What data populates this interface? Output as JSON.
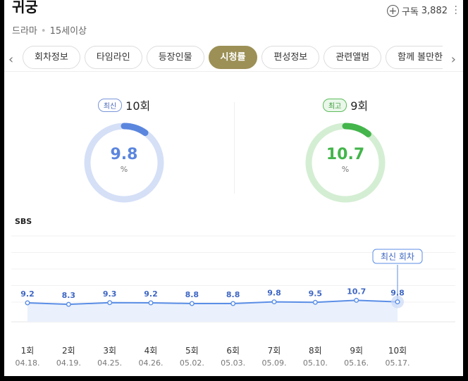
{
  "header": {
    "title": "귀궁",
    "genre": "드라마",
    "rating": "15세이상",
    "subscribe_label": "구독",
    "subscribe_count": "3,882"
  },
  "tabs": [
    {
      "label": "회차정보"
    },
    {
      "label": "타임라인"
    },
    {
      "label": "등장인물"
    },
    {
      "label": "시청률"
    },
    {
      "label": "편성정보"
    },
    {
      "label": "관련앨범"
    },
    {
      "label": "함께 볼만한"
    }
  ],
  "active_tab": "시청률",
  "latest": {
    "badge": "최신",
    "episode": "10회",
    "value": "9.8",
    "unit": "%",
    "color": "#5b86de",
    "track": "#d5e0f7"
  },
  "best": {
    "badge": "최고",
    "episode": "9회",
    "value": "10.7",
    "unit": "%",
    "color": "#43b54b",
    "track": "#d4eed3"
  },
  "channel": "SBS",
  "chart_data": {
    "type": "line",
    "categories": [
      "1회",
      "2회",
      "3회",
      "4회",
      "5회",
      "6회",
      "7회",
      "8회",
      "9회",
      "10회"
    ],
    "dates": [
      "04.18.",
      "04.19.",
      "04.25.",
      "04.26.",
      "05.02.",
      "05.03.",
      "05.09.",
      "05.10.",
      "05.16.",
      "05.17."
    ],
    "values": [
      9.2,
      8.3,
      9.3,
      9.2,
      8.8,
      8.8,
      9.8,
      9.5,
      10.7,
      9.8
    ],
    "value_labels": [
      "9.2",
      "8.3",
      "9.3",
      "9.2",
      "8.8",
      "8.8",
      "9.8",
      "9.5",
      "10.7",
      "9.8"
    ],
    "ylim": [
      0,
      100
    ],
    "callout": "최신 회차",
    "line_color": "#5b8ee6",
    "fill_color": "#eaf1fd"
  }
}
